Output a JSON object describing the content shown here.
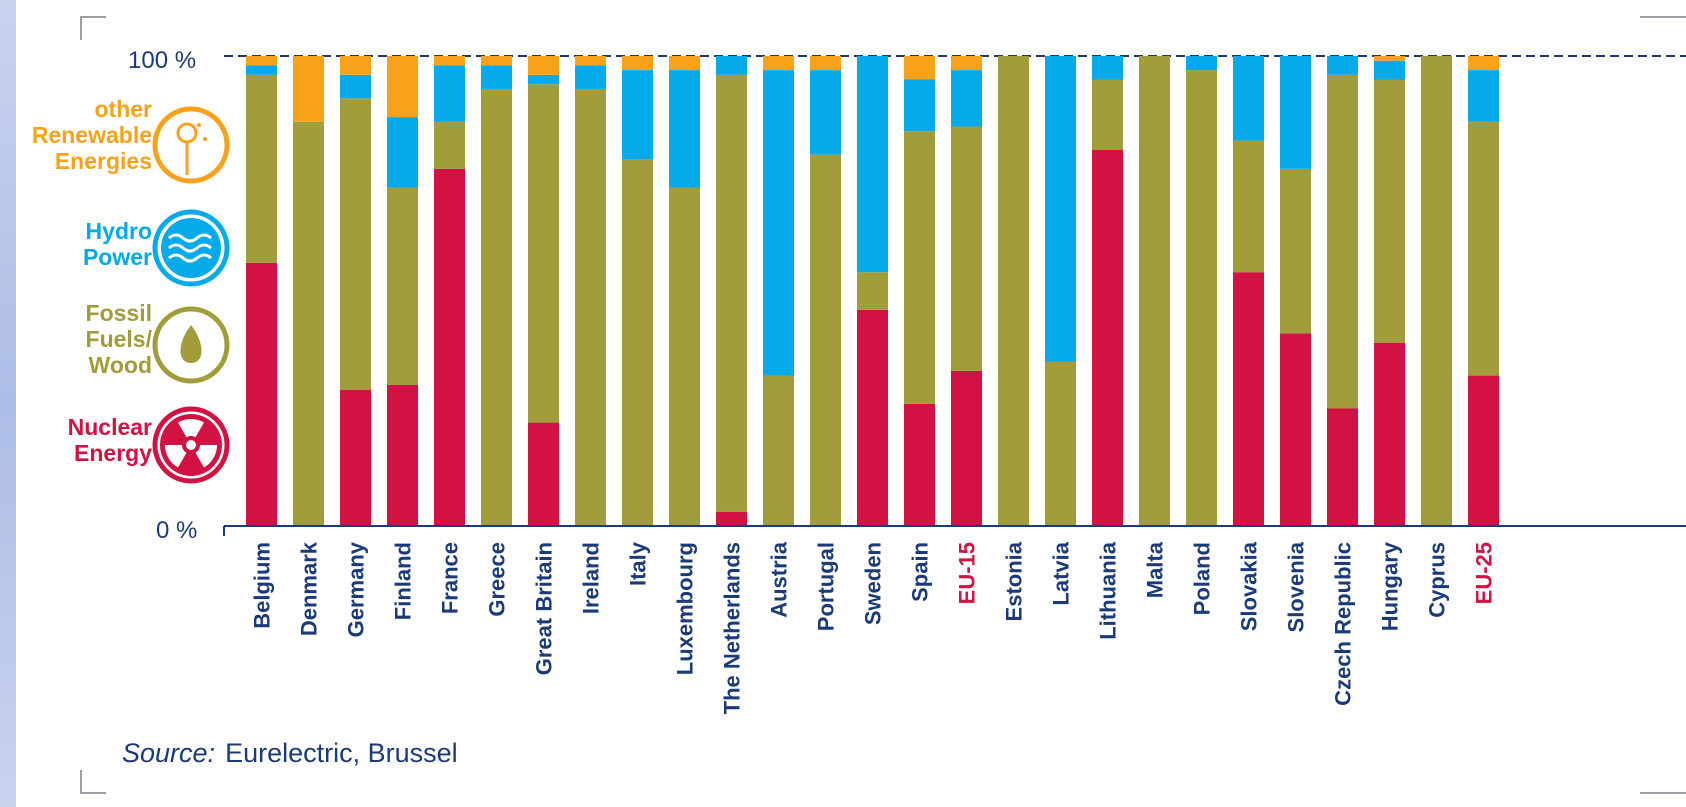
{
  "chart_data": {
    "type": "bar",
    "stacked": true,
    "y_tick_labels": {
      "top": "100 %",
      "bottom": "0 %"
    },
    "ylim": [
      0,
      100
    ],
    "categories": [
      "Belgium",
      "Denmark",
      "Germany",
      "Finland",
      "France",
      "Greece",
      "Great Britain",
      "Ireland",
      "Italy",
      "Luxembourg",
      "The Netherlands",
      "Austria",
      "Portugal",
      "Sweden",
      "Spain",
      "EU-15",
      "Estonia",
      "Latvia",
      "Lithuania",
      "Malta",
      "Poland",
      "Slovakia",
      "Slovenia",
      "Czech Republic",
      "Hungary",
      "Cyprus",
      "EU-25"
    ],
    "highlighted_categories": [
      "EU-15",
      "EU-25"
    ],
    "series": [
      {
        "name": "Nuclear Energy",
        "color": "#d21242",
        "values": [
          56,
          0,
          29,
          30,
          76,
          0,
          22,
          0,
          0,
          0,
          3,
          0,
          0,
          46,
          26,
          33,
          0,
          0,
          80,
          0,
          0,
          54,
          41,
          25,
          39,
          0,
          32
        ]
      },
      {
        "name": "Fossil Fuels/ Wood",
        "color": "#a19d3a",
        "values": [
          40,
          86,
          62,
          42,
          10,
          93,
          72,
          93,
          78,
          72,
          93,
          32,
          79,
          8,
          58,
          52,
          100,
          35,
          15,
          100,
          97,
          28,
          35,
          71,
          56,
          100,
          54
        ]
      },
      {
        "name": "Hydro Power",
        "color": "#05aaea",
        "values": [
          2,
          0,
          5,
          15,
          12,
          5,
          2,
          5,
          19,
          25,
          4,
          65,
          18,
          46,
          11,
          12,
          0,
          65,
          5,
          0,
          3,
          18,
          24,
          4,
          4,
          0,
          11
        ]
      },
      {
        "name": "other Renewable Energies",
        "color": "#f8a21c",
        "values": [
          2,
          14,
          4,
          13,
          2,
          2,
          4,
          2,
          3,
          3,
          0,
          3,
          3,
          0,
          5,
          3,
          0,
          0,
          0,
          0,
          0,
          0,
          0,
          0,
          1,
          0,
          3
        ]
      }
    ],
    "legend": [
      {
        "lines": [
          "other",
          "Renewable",
          "Energies"
        ],
        "color": "#f8a21c",
        "icon": "wind-turbine-icon"
      },
      {
        "lines": [
          "Hydro",
          "Power"
        ],
        "color": "#05aaea",
        "icon": "water-waves-icon"
      },
      {
        "lines": [
          "Fossil",
          "Fuels/",
          "Wood"
        ],
        "color": "#a19d3a",
        "icon": "oil-drop-icon"
      },
      {
        "lines": [
          "Nuclear",
          "Energy"
        ],
        "color": "#d21242",
        "icon": "radiation-icon"
      }
    ],
    "label_color": "#1a3a7a",
    "highlight_label_color": "#d21242",
    "legend_placement": "left"
  },
  "source": {
    "key": "Source:",
    "value": "Eurelectric, Brussel"
  }
}
